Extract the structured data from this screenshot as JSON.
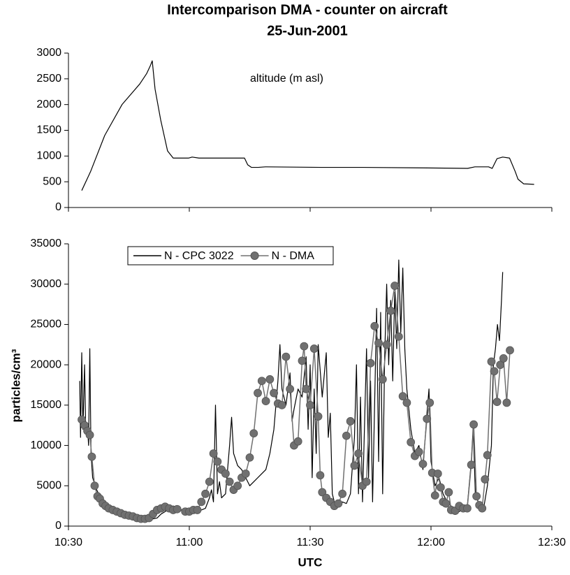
{
  "chart_data": [
    {
      "type": "line",
      "title": "Intercomparison DMA - counter on aircraft",
      "subtitle": "25-Jun-2001",
      "annotation": "altitude (m asl)",
      "xlim": [
        630,
        750
      ],
      "ylim": [
        0,
        3000
      ],
      "yticks": [
        0,
        500,
        1000,
        1500,
        2000,
        2500,
        3000
      ],
      "series": [
        {
          "color": "#000000",
          "marker": false,
          "x": [
            633.3,
            635.5,
            639,
            643.3,
            647.7,
            649.4,
            650.3,
            650.8,
            651.5,
            652.9,
            654.6,
            656,
            659.8,
            660.7,
            662.4,
            673.7,
            674.5,
            675.4,
            677.1,
            678.9,
            692.7,
            703.1,
            717,
            729.1,
            730.9,
            734.3,
            735.2,
            736.4,
            737.8,
            739.5,
            740.9,
            741.6,
            743,
            745.6
          ],
          "values": [
            330,
            700,
            1400,
            2000,
            2400,
            2600,
            2750,
            2850,
            2300,
            1700,
            1100,
            960,
            960,
            980,
            960,
            960,
            830,
            780,
            780,
            790,
            780,
            780,
            770,
            760,
            790,
            790,
            760,
            950,
            980,
            960,
            700,
            550,
            460,
            450
          ]
        }
      ]
    },
    {
      "type": "line",
      "xlabel": "UTC",
      "ylabel": "particles/cm³",
      "xlim": [
        630,
        750
      ],
      "xticks": [
        {
          "value": 630,
          "label": "10:30"
        },
        {
          "value": 660,
          "label": "11:00"
        },
        {
          "value": 690,
          "label": "11:30"
        },
        {
          "value": 720,
          "label": "12:00"
        },
        {
          "value": 750,
          "label": "12:30"
        }
      ],
      "ylim": [
        0,
        35000
      ],
      "yticks": [
        0,
        5000,
        10000,
        15000,
        20000,
        25000,
        30000,
        35000
      ],
      "legend": "top-left",
      "series": [
        {
          "name": "N - CPC 3022",
          "color": "#000000",
          "marker": false,
          "x": [
            632.8,
            633,
            633.3,
            633.6,
            634,
            634.3,
            634.7,
            635,
            635.3,
            635.6,
            636,
            637,
            638,
            639,
            640,
            641,
            642,
            643,
            644,
            645,
            646,
            647,
            648,
            649,
            650,
            651,
            652,
            653,
            654,
            655,
            656,
            657,
            658,
            659,
            660,
            661,
            662,
            663,
            664,
            665,
            665.5,
            666,
            666.5,
            667,
            667.5,
            668,
            669,
            670,
            670.5,
            671,
            672,
            673,
            674,
            675,
            676,
            677,
            678,
            679,
            680,
            681,
            682,
            682.5,
            683,
            684,
            685,
            685.5,
            686,
            687,
            688,
            689,
            689.5,
            690,
            690.5,
            691,
            691.5,
            692,
            693,
            694,
            694.5,
            695,
            695.5,
            696,
            697,
            698,
            699,
            700,
            701,
            701.5,
            702,
            702.5,
            703,
            704,
            704.5,
            705,
            705.5,
            706,
            706.5,
            707,
            707.5,
            708,
            708.5,
            709,
            709.5,
            710,
            710.5,
            711,
            711.5,
            712,
            712.5,
            713,
            713.5,
            714,
            715,
            716,
            717,
            718,
            719,
            719.5,
            720,
            721,
            722,
            723,
            724,
            725,
            726,
            727,
            728,
            729,
            730,
            730.5,
            731,
            732,
            733,
            734,
            735,
            735.5,
            736,
            736.5,
            737,
            737.5,
            737.8
          ],
          "values": [
            18000,
            11000,
            21500,
            12000,
            20000,
            11500,
            12500,
            10000,
            22000,
            9000,
            6000,
            4500,
            3500,
            3000,
            2600,
            2400,
            2200,
            2000,
            1800,
            1600,
            1500,
            1400,
            1300,
            1100,
            1000,
            900,
            1000,
            1500,
            1800,
            2200,
            2500,
            2300,
            2000,
            2200,
            2100,
            1800,
            1900,
            2000,
            2200,
            3500,
            4500,
            3000,
            15000,
            4000,
            5500,
            3500,
            4000,
            10000,
            13500,
            9000,
            7500,
            7000,
            6000,
            5000,
            5500,
            6000,
            6500,
            7000,
            9000,
            12000,
            18000,
            22500,
            17000,
            15000,
            19000,
            13000,
            14500,
            17000,
            16000,
            21000,
            12000,
            20000,
            6000,
            17000,
            9000,
            22500,
            16000,
            21500,
            11000,
            14000,
            4000,
            3000,
            2500,
            3000,
            2800,
            4000,
            11000,
            20000,
            4000,
            16000,
            3000,
            22000,
            6000,
            18000,
            3000,
            15000,
            27000,
            8000,
            26500,
            4000,
            21000,
            30000,
            20000,
            28000,
            18000,
            29000,
            22000,
            33000,
            24000,
            32000,
            22000,
            17000,
            12000,
            9000,
            10000,
            7000,
            14000,
            17000,
            8000,
            5000,
            6000,
            4000,
            3000,
            2500,
            2000,
            1800,
            2200,
            2400,
            8000,
            12500,
            4000,
            2500,
            2000,
            5000,
            10000,
            20000,
            22000,
            25000,
            23000,
            28000,
            31500
          ]
        },
        {
          "name": "N - DMA",
          "color": "#707070",
          "marker": true,
          "x": [
            633.3,
            634,
            634.7,
            635.3,
            635.8,
            636.5,
            637.2,
            637.8,
            638.5,
            639.2,
            640,
            641,
            642,
            643,
            644,
            645,
            646,
            647,
            648,
            649,
            650,
            651,
            652,
            653,
            654,
            655,
            656,
            657,
            659,
            660,
            661,
            662,
            663,
            664,
            665,
            666,
            667,
            668,
            669,
            670,
            671,
            672,
            673,
            674,
            675,
            676,
            677,
            678,
            679,
            680,
            681,
            682,
            683,
            684,
            685,
            686,
            687,
            688,
            688.5,
            689,
            690,
            691,
            692,
            692.5,
            693,
            694,
            695,
            696,
            697,
            698,
            699,
            700,
            701,
            702,
            703,
            704,
            705,
            706,
            707,
            708,
            709,
            710,
            711,
            712,
            713,
            714,
            715,
            716,
            717,
            718,
            719,
            719.7,
            720.3,
            721,
            721.7,
            722.4,
            723,
            723.7,
            724.4,
            725,
            726,
            727,
            728,
            729,
            730,
            730.6,
            731.3,
            732,
            732.7,
            733.4,
            734,
            735,
            735.7,
            736.4,
            737.2,
            738,
            738.8,
            739.6
          ],
          "values": [
            13200,
            12500,
            11800,
            11300,
            8600,
            5000,
            3700,
            3400,
            2800,
            2500,
            2200,
            2000,
            1800,
            1600,
            1400,
            1300,
            1200,
            1000,
            900,
            900,
            1000,
            1500,
            2000,
            2200,
            2400,
            2200,
            2000,
            2100,
            1800,
            1800,
            2000,
            2000,
            3000,
            4000,
            5500,
            9000,
            8000,
            7000,
            6500,
            5500,
            4500,
            5000,
            6000,
            6500,
            8500,
            11500,
            16500,
            18000,
            15500,
            18200,
            16500,
            15200,
            15000,
            21000,
            17000,
            10000,
            10500,
            20500,
            22300,
            17000,
            15000,
            22000,
            13600,
            6300,
            4200,
            3500,
            3000,
            2500,
            2800,
            4000,
            11200,
            13000,
            7500,
            9000,
            5000,
            5500,
            20200,
            24800,
            22700,
            18200,
            22500,
            26700,
            29800,
            23500,
            16100,
            15300,
            10400,
            8700,
            9200,
            7700,
            13300,
            15300,
            6600,
            3800,
            6500,
            4800,
            3000,
            2800,
            4200,
            2000,
            1900,
            2500,
            2200,
            2200,
            7600,
            12600,
            3700,
            2600,
            2200,
            5800,
            8800,
            20400,
            19200,
            15400,
            20000,
            20800,
            15300,
            21800
          ]
        }
      ]
    }
  ]
}
